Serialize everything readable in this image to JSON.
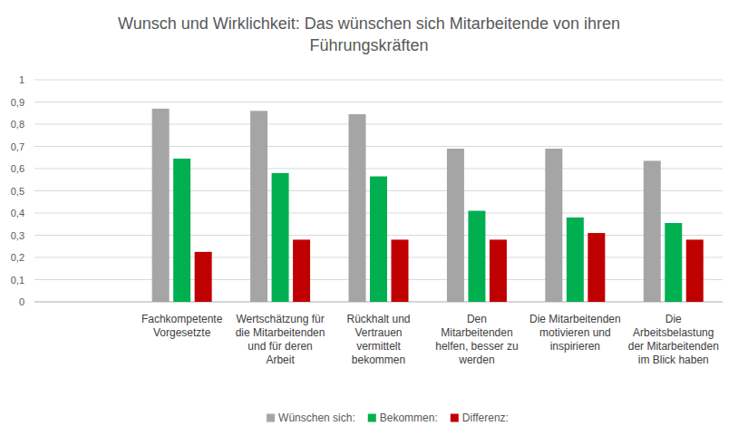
{
  "chart_data": {
    "type": "bar",
    "title": "Wunsch und Wirklichkeit: Das wünschen sich Mitarbeitende von ihren Führungskräften",
    "categories": [
      null,
      "Fachkompetente Vorgesetzte",
      "Wertschätzung für die Mitarbeitenden und für deren Arbeit",
      "Rückhalt und Vertrauen vermittelt bekommen",
      "Den Mitarbeitenden helfen, besser zu werden",
      "Die Mitarbeitenden motivieren und inspirieren",
      "Die Arbeitsbelastung der Mitarbeitenden im Blick haben"
    ],
    "series": [
      {
        "name": "Wünschen sich:",
        "color": "#a5a5a5",
        "values": [
          null,
          0.87,
          0.86,
          0.845,
          0.69,
          0.69,
          0.635
        ]
      },
      {
        "name": "Bekommen:",
        "color": "#00b050",
        "values": [
          null,
          0.645,
          0.58,
          0.565,
          0.41,
          0.38,
          0.355
        ]
      },
      {
        "name": "Differenz:",
        "color": "#c00000",
        "values": [
          null,
          0.225,
          0.28,
          0.28,
          0.28,
          0.31,
          0.28
        ]
      }
    ],
    "ylim": [
      0,
      1
    ],
    "yticks": [
      0,
      {
        "value": 0.1,
        "label": "0,1"
      },
      {
        "value": 0.2,
        "label": "0,2"
      },
      {
        "value": 0.3,
        "label": "0,3"
      },
      {
        "value": 0.4,
        "label": "0,4"
      },
      {
        "value": 0.5,
        "label": "0,5"
      },
      {
        "value": 0.6,
        "label": "0,6"
      },
      {
        "value": 0.7,
        "label": "0,7"
      },
      {
        "value": 0.8,
        "label": "0,8"
      },
      {
        "value": 0.9,
        "label": "0,9"
      },
      1
    ],
    "grid": true,
    "legend": "bottom"
  }
}
